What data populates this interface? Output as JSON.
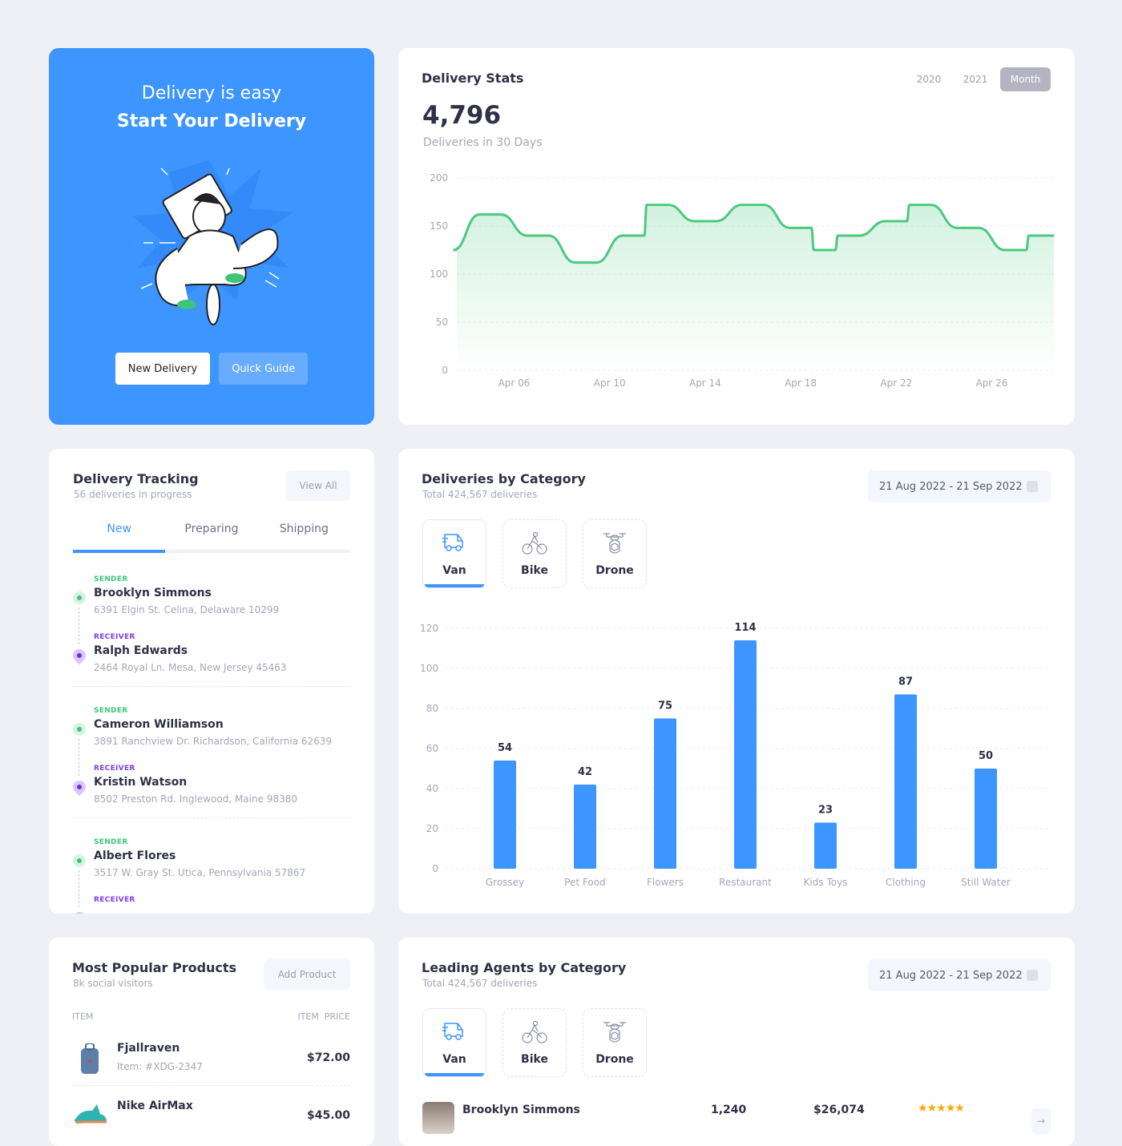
{
  "hero": {
    "line1": "Delivery is easy",
    "line2": "Start Your Delivery",
    "new_delivery": "New Delivery",
    "quick_guide": "Quick Guide",
    "accent": "#3d95ff"
  },
  "stats": {
    "title": "Delivery Stats",
    "filters": [
      "2020",
      "2021",
      "Month"
    ],
    "active_filter": "Month",
    "total": "4,796",
    "total_label": "Deliveries in 30 Days"
  },
  "tracking": {
    "title": "Delivery Tracking",
    "subtitle": "56 deliveries in progress",
    "view_all": "View All",
    "tabs": [
      "New",
      "Preparing",
      "Shipping"
    ],
    "active_tab": "New",
    "sender_label": "SENDER",
    "receiver_label": "RECEIVER",
    "items": [
      {
        "sender": "Brooklyn Simmons",
        "sender_addr": "6391 Elgin St. Celina, Delaware 10299",
        "receiver": "Ralph Edwards",
        "receiver_addr": "2464 Royal Ln. Mesa, New Jersey 45463"
      },
      {
        "sender": "Cameron Williamson",
        "sender_addr": "3891 Ranchview Dr. Richardson, California 62639",
        "receiver": "Kristin Watson",
        "receiver_addr": "8502 Preston Rd. Inglewood, Maine 98380"
      },
      {
        "sender": "Albert Flores",
        "sender_addr": "3517 W. Gray St. Utica, Pennsylvania 57867",
        "receiver": "",
        "receiver_addr": ""
      }
    ]
  },
  "categories": {
    "title": "Deliveries by Category",
    "subtitle": "Total 424,567 deliveries",
    "range": "21 Aug 2022 - 21 Sep 2022",
    "tabs": [
      "Van",
      "Bike",
      "Drone"
    ],
    "active_tab": "Van"
  },
  "products": {
    "title": "Most Popular Products",
    "subtitle": "8k social visitors",
    "add": "Add Product",
    "col_item": "ITEM",
    "col_price": "ITEM  PRICE",
    "items": [
      {
        "name": "Fjallraven",
        "code": "Item: #XDG-2347",
        "price": "$72.00"
      },
      {
        "name": "Nike AirMax",
        "code": "",
        "price": "$45.00"
      }
    ]
  },
  "agents": {
    "title": "Leading Agents by Category",
    "subtitle": "Total 424,567 deliveries",
    "range": "21 Aug 2022 - 21 Sep 2022",
    "tabs": [
      "Van",
      "Bike",
      "Drone"
    ],
    "active_tab": "Van",
    "rows": [
      {
        "name": "Brooklyn Simmons",
        "deliveries": "1,240",
        "earnings": "$26,074",
        "rating": 5
      }
    ]
  },
  "chart_data": [
    {
      "type": "area",
      "title": "",
      "xlabel": "",
      "ylabel": "",
      "ylim": [
        0,
        200
      ],
      "yticks": [
        "200",
        "150",
        "100",
        "50",
        "0"
      ],
      "xticks": [
        "Apr 06",
        "Apr 10",
        "Apr  14",
        "Apr 18",
        "Apr 22",
        "Apr 26"
      ],
      "grid": true,
      "color": "#4cc97f",
      "points": [
        [
          "Apr 03",
          125
        ],
        [
          "Apr 05",
          162
        ],
        [
          "Apr 07",
          140
        ],
        [
          "Apr 09",
          112
        ],
        [
          "Apr 11",
          140
        ],
        [
          "Apr 12",
          172
        ],
        [
          "Apr 14",
          155
        ],
        [
          "Apr 16",
          172
        ],
        [
          "Apr 18",
          148
        ],
        [
          "Apr 19",
          125
        ],
        [
          "Apr 20",
          140
        ],
        [
          "Apr 22",
          155
        ],
        [
          "Apr 23",
          172
        ],
        [
          "Apr 25",
          148
        ],
        [
          "Apr 27",
          125
        ],
        [
          "Apr 28",
          140
        ]
      ]
    },
    {
      "type": "bar",
      "title": "",
      "xlabel": "",
      "ylabel": "",
      "ylim": [
        0,
        120
      ],
      "yticks": [
        "120",
        "100",
        "80",
        "60",
        "40",
        "20",
        "0"
      ],
      "grid": true,
      "color": "#3d95ff",
      "categories": [
        "Grossey",
        "Pet Food",
        "Flowers",
        "Restaurant",
        "Kids Toys",
        "Clothing",
        "Still Water"
      ],
      "values": [
        54,
        42,
        75,
        114,
        23,
        87,
        50
      ]
    }
  ]
}
